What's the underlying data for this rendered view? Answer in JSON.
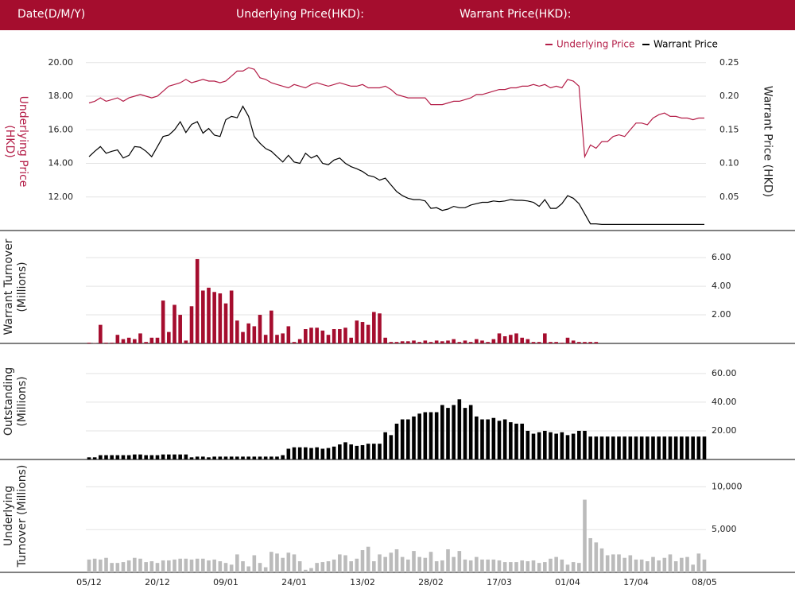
{
  "header": {
    "date": "Date(D/M/Y)",
    "underlying": "Underlying Price(HKD):",
    "warrant": "Warrant Price(HKD):"
  },
  "chart_data": [
    {
      "type": "line",
      "ylabel": "Underlying Price (HKD)",
      "y2label": "Warrant Price (HKD)",
      "ylim": [
        10,
        21.6
      ],
      "yticks": [
        {
          "value": 12,
          "label": "12.00"
        },
        {
          "value": 14,
          "label": "14.00"
        },
        {
          "value": 16,
          "label": "16.00"
        },
        {
          "value": 18,
          "label": "18.00"
        },
        {
          "value": 20,
          "label": "20.00"
        }
      ],
      "y2lim": [
        0,
        0.29
      ],
      "y2ticks": [
        {
          "value": 0.05,
          "label": "0.05"
        },
        {
          "value": 0.1,
          "label": "0.10"
        },
        {
          "value": 0.15,
          "label": "0.15"
        },
        {
          "value": 0.2,
          "label": "0.20"
        },
        {
          "value": 0.25,
          "label": "0.25"
        }
      ],
      "grid": true,
      "legend": "top-right",
      "series": [
        {
          "name": "Underlying Price",
          "color": "#b41e48",
          "values": [
            17.6,
            17.7,
            17.9,
            17.7,
            17.8,
            17.9,
            17.7,
            17.9,
            18.0,
            18.1,
            18.0,
            17.9,
            18.0,
            18.3,
            18.6,
            18.7,
            18.8,
            19.0,
            18.8,
            18.9,
            19.0,
            18.9,
            18.9,
            18.8,
            18.9,
            19.2,
            19.5,
            19.5,
            19.7,
            19.6,
            19.1,
            19.0,
            18.8,
            18.7,
            18.6,
            18.5,
            18.7,
            18.6,
            18.5,
            18.7,
            18.8,
            18.7,
            18.6,
            18.7,
            18.8,
            18.7,
            18.6,
            18.6,
            18.7,
            18.5,
            18.5,
            18.5,
            18.6,
            18.4,
            18.1,
            18.0,
            17.9,
            17.9,
            17.9,
            17.9,
            17.5,
            17.5,
            17.5,
            17.6,
            17.7,
            17.7,
            17.8,
            17.9,
            18.1,
            18.1,
            18.2,
            18.3,
            18.4,
            18.4,
            18.5,
            18.5,
            18.6,
            18.6,
            18.7,
            18.6,
            18.7,
            18.5,
            18.6,
            18.5,
            19.0,
            18.9,
            18.6,
            14.4,
            15.1,
            14.9,
            15.3,
            15.3,
            15.6,
            15.7,
            15.6,
            16.0,
            16.4,
            16.4,
            16.3,
            16.7,
            16.9,
            17.0,
            16.8,
            16.8,
            16.7,
            16.7,
            16.6,
            16.7,
            16.7
          ]
        },
        {
          "name": "Warrant Price",
          "color": "#000000",
          "axis": "y2",
          "values": [
            0.11,
            0.118,
            0.125,
            0.115,
            0.118,
            0.12,
            0.108,
            0.112,
            0.125,
            0.124,
            0.118,
            0.11,
            0.125,
            0.14,
            0.142,
            0.15,
            0.162,
            0.146,
            0.158,
            0.162,
            0.145,
            0.152,
            0.142,
            0.14,
            0.165,
            0.17,
            0.168,
            0.185,
            0.17,
            0.14,
            0.13,
            0.122,
            0.118,
            0.11,
            0.102,
            0.112,
            0.102,
            0.1,
            0.115,
            0.108,
            0.112,
            0.1,
            0.098,
            0.105,
            0.108,
            0.1,
            0.095,
            0.092,
            0.088,
            0.082,
            0.08,
            0.075,
            0.078,
            0.068,
            0.058,
            0.052,
            0.048,
            0.046,
            0.046,
            0.044,
            0.033,
            0.034,
            0.03,
            0.032,
            0.036,
            0.034,
            0.034,
            0.038,
            0.04,
            0.042,
            0.042,
            0.044,
            0.043,
            0.044,
            0.046,
            0.045,
            0.045,
            0.044,
            0.042,
            0.036,
            0.046,
            0.033,
            0.033,
            0.04,
            0.052,
            0.048,
            0.04,
            0.025,
            0.01,
            0.01,
            0.009,
            0.009,
            0.009,
            0.009,
            0.009,
            0.009,
            0.009,
            0.009,
            0.009,
            0.009,
            0.009,
            0.009,
            0.009,
            0.009,
            0.009,
            0.009,
            0.009,
            0.009,
            0.009
          ]
        }
      ]
    },
    {
      "type": "bar",
      "ylabel": "Warrant Turnover (Millions)",
      "color": "#a50d2e",
      "grid": true,
      "ylim": [
        0,
        7.9
      ],
      "yticks": [
        {
          "value": 2,
          "label": "2.00"
        },
        {
          "value": 4,
          "label": "4.00"
        },
        {
          "value": 6,
          "label": "6.00"
        }
      ],
      "values": [
        0.05,
        0.02,
        1.3,
        0.05,
        0.05,
        0.6,
        0.3,
        0.4,
        0.3,
        0.7,
        0.1,
        0.4,
        0.4,
        3.0,
        0.8,
        2.7,
        2.0,
        0.2,
        2.6,
        5.9,
        3.7,
        3.9,
        3.6,
        3.5,
        2.8,
        3.7,
        1.6,
        0.8,
        1.4,
        1.2,
        2.0,
        0.6,
        2.3,
        0.6,
        0.7,
        1.2,
        0.1,
        0.3,
        1.0,
        1.1,
        1.1,
        0.9,
        0.6,
        1.0,
        1.0,
        1.1,
        0.4,
        1.6,
        1.5,
        1.3,
        2.2,
        2.1,
        0.4,
        0.1,
        0.1,
        0.15,
        0.15,
        0.2,
        0.1,
        0.2,
        0.1,
        0.2,
        0.15,
        0.2,
        0.3,
        0.1,
        0.2,
        0.1,
        0.3,
        0.2,
        0.1,
        0.3,
        0.7,
        0.5,
        0.6,
        0.7,
        0.4,
        0.3,
        0.1,
        0.1,
        0.7,
        0.1,
        0.1,
        0.05,
        0.4,
        0.2,
        0.1,
        0.1,
        0.1,
        0.1,
        0,
        0,
        0,
        0,
        0,
        0,
        0,
        0,
        0,
        0,
        0,
        0,
        0,
        0,
        0,
        0,
        0,
        0,
        0
      ]
    },
    {
      "type": "bar",
      "ylabel": "Outstanding (Millions)",
      "color": "#000000",
      "grid": true,
      "ylim": [
        0,
        81
      ],
      "yticks": [
        {
          "value": 20,
          "label": "20.00"
        },
        {
          "value": 40,
          "label": "40.00"
        },
        {
          "value": 60,
          "label": "60.00"
        }
      ],
      "values": [
        1.5,
        1.5,
        3,
        3,
        3,
        3,
        3,
        3,
        3.5,
        3.5,
        3,
        3,
        3,
        3.5,
        3.5,
        3.5,
        3.5,
        3.5,
        1.5,
        2,
        2,
        1.5,
        2,
        2,
        2,
        2,
        2,
        2,
        2,
        2,
        2,
        2,
        2,
        2,
        3,
        7.5,
        8.5,
        8.5,
        8.5,
        8,
        8.5,
        7.5,
        8,
        9,
        10.5,
        12,
        10.5,
        9.5,
        10,
        11,
        11,
        11,
        19,
        17,
        25,
        28,
        28,
        30,
        32,
        33,
        33,
        33,
        38,
        36,
        38,
        42,
        36,
        38,
        30,
        28,
        28,
        29,
        27,
        28,
        26,
        25,
        25,
        20,
        18,
        19,
        20,
        19,
        18,
        19,
        17,
        18,
        20,
        20,
        16,
        16,
        16,
        16,
        16,
        16,
        16,
        16,
        16,
        16,
        16,
        16,
        16,
        16,
        16,
        16,
        16,
        16,
        16,
        16,
        16
      ]
    },
    {
      "type": "bar",
      "ylabel": "Underlying Turnover (Millions)",
      "color": "#bbbbbb",
      "grid": true,
      "ylim": [
        0,
        13200
      ],
      "yticks": [
        {
          "value": 5000,
          "label": "5,000"
        },
        {
          "value": 10000,
          "label": "10,000"
        }
      ],
      "categories": [
        "05/12",
        null,
        null,
        null,
        null,
        null,
        null,
        null,
        null,
        null,
        null,
        null,
        "20/12",
        null,
        null,
        null,
        null,
        null,
        null,
        null,
        null,
        null,
        null,
        null,
        "09/01",
        null,
        null,
        null,
        null,
        null,
        null,
        null,
        null,
        null,
        null,
        null,
        "24/01",
        null,
        null,
        null,
        null,
        null,
        null,
        null,
        null,
        null,
        null,
        null,
        "13/02",
        null,
        null,
        null,
        null,
        null,
        null,
        null,
        null,
        null,
        null,
        null,
        "28/02",
        null,
        null,
        null,
        null,
        null,
        null,
        null,
        null,
        null,
        null,
        null,
        "17/03",
        null,
        null,
        null,
        null,
        null,
        null,
        null,
        null,
        null,
        null,
        null,
        "01/04",
        null,
        null,
        null,
        null,
        null,
        null,
        null,
        null,
        null,
        null,
        null,
        "17/04",
        null,
        null,
        null,
        null,
        null,
        null,
        null,
        null,
        null,
        null,
        null,
        "08/05"
      ],
      "values": [
        1500,
        1600,
        1500,
        1700,
        1100,
        1100,
        1200,
        1400,
        1700,
        1600,
        1200,
        1300,
        1100,
        1400,
        1400,
        1500,
        1600,
        1600,
        1500,
        1600,
        1600,
        1400,
        1500,
        1300,
        1100,
        900,
        2100,
        1300,
        700,
        2000,
        1100,
        600,
        2400,
        2200,
        1700,
        2300,
        2100,
        1300,
        300,
        500,
        1100,
        1200,
        1300,
        1500,
        2100,
        2000,
        1300,
        1600,
        2600,
        3000,
        1300,
        2100,
        1800,
        2300,
        2700,
        1800,
        1500,
        2500,
        1800,
        1700,
        2400,
        1300,
        1400,
        2700,
        1800,
        2500,
        1500,
        1400,
        1800,
        1500,
        1500,
        1500,
        1400,
        1200,
        1200,
        1200,
        1400,
        1300,
        1400,
        1100,
        1200,
        1600,
        1800,
        1500,
        900,
        1200,
        1100,
        8500,
        4000,
        3500,
        2800,
        2000,
        2100,
        2100,
        1700,
        2000,
        1500,
        1500,
        1300,
        1800,
        1400,
        1700,
        2100,
        1300,
        1700,
        1800,
        900,
        2200,
        1500
      ]
    }
  ]
}
